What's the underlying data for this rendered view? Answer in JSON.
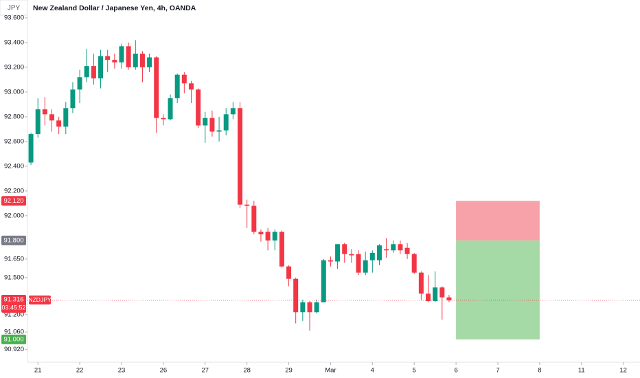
{
  "chart_data": {
    "type": "candlestick",
    "title": "New Zealand Dollar / Japanese Yen, 4h, OANDA",
    "currency": "JPY",
    "symbol": "NZDJPY",
    "countdown": "03:45:52",
    "up_color": "#089981",
    "down_color": "#f23645",
    "x": [
      0,
      1,
      2,
      3,
      4,
      5,
      6,
      7,
      8,
      9,
      10,
      11,
      12,
      13,
      14,
      15,
      16,
      17,
      18,
      19,
      20,
      21,
      22,
      23,
      24,
      25,
      26,
      27,
      28,
      29,
      30,
      31,
      32,
      33,
      34,
      35,
      36,
      37,
      38,
      39,
      40,
      41,
      42,
      43,
      44,
      45,
      46,
      47,
      48,
      49,
      50,
      51,
      52,
      53,
      54,
      55,
      56,
      57,
      58,
      59,
      60
    ],
    "open": [
      92.43,
      92.66,
      92.86,
      92.82,
      92.77,
      92.72,
      92.87,
      93.02,
      93.12,
      93.21,
      93.11,
      93.29,
      93.26,
      93.24,
      93.37,
      93.2,
      93.31,
      93.2,
      93.28,
      92.79,
      92.78,
      92.95,
      93.14,
      93.07,
      93.02,
      92.73,
      92.79,
      92.68,
      92.69,
      92.82,
      92.87,
      92.09,
      92.08,
      91.87,
      91.87,
      91.8,
      91.87,
      91.59,
      91.49,
      91.22,
      91.3,
      91.22,
      91.3,
      91.64,
      91.63,
      91.77,
      91.69,
      91.69,
      91.54,
      91.64,
      91.64,
      91.73,
      91.72,
      91.77,
      91.74,
      91.69,
      91.54,
      91.37,
      91.31,
      91.42,
      91.34
    ],
    "high": [
      92.67,
      92.95,
      92.96,
      92.86,
      92.8,
      92.92,
      93.08,
      93.18,
      93.35,
      93.31,
      93.34,
      93.34,
      93.31,
      93.39,
      93.4,
      93.42,
      93.33,
      93.31,
      93.29,
      92.82,
      92.98,
      93.15,
      93.16,
      93.09,
      93.03,
      92.84,
      92.85,
      92.8,
      92.87,
      92.92,
      92.92,
      92.13,
      92.12,
      91.89,
      91.9,
      91.89,
      91.88,
      91.6,
      91.5,
      91.32,
      91.31,
      91.32,
      91.65,
      91.67,
      91.77,
      91.78,
      91.73,
      91.72,
      91.71,
      91.72,
      91.77,
      91.82,
      91.8,
      91.8,
      91.78,
      91.7,
      91.55,
      91.52,
      91.55,
      91.43,
      91.36
    ],
    "low": [
      92.41,
      92.63,
      92.73,
      92.68,
      92.66,
      92.66,
      92.83,
      92.91,
      93.08,
      93.06,
      93.03,
      93.16,
      93.19,
      93.19,
      93.18,
      93.18,
      93.08,
      93.16,
      92.67,
      92.73,
      92.77,
      92.91,
      92.99,
      92.91,
      92.71,
      92.59,
      92.64,
      92.6,
      92.65,
      92.78,
      92.06,
      91.9,
      91.85,
      91.79,
      91.72,
      91.72,
      91.58,
      91.43,
      91.13,
      91.15,
      91.07,
      91.21,
      91.3,
      91.59,
      91.57,
      91.62,
      91.62,
      91.52,
      91.52,
      91.54,
      91.6,
      91.66,
      91.7,
      91.69,
      91.65,
      91.53,
      91.32,
      91.3,
      91.3,
      91.16,
      91.3
    ],
    "close": [
      92.66,
      92.86,
      92.82,
      92.77,
      92.72,
      92.87,
      93.02,
      93.12,
      93.21,
      93.11,
      93.29,
      93.26,
      93.24,
      93.37,
      93.2,
      93.31,
      93.2,
      93.28,
      92.79,
      92.78,
      92.95,
      93.14,
      93.07,
      93.02,
      92.73,
      92.79,
      92.68,
      92.69,
      92.82,
      92.87,
      92.09,
      92.08,
      91.87,
      91.85,
      91.8,
      91.87,
      91.59,
      91.49,
      91.22,
      91.3,
      91.22,
      91.3,
      91.64,
      91.63,
      91.77,
      91.69,
      91.68,
      91.54,
      91.64,
      91.7,
      91.76,
      91.72,
      91.77,
      91.72,
      91.69,
      91.54,
      91.37,
      91.31,
      91.42,
      91.34,
      91.316
    ],
    "last_price": 91.316,
    "xlim": [
      -0.5,
      87.4
    ],
    "xticks": [
      {
        "value": 1,
        "label": "21"
      },
      {
        "value": 7,
        "label": "22"
      },
      {
        "value": 13,
        "label": "23"
      },
      {
        "value": 19,
        "label": "26"
      },
      {
        "value": 25,
        "label": "27"
      },
      {
        "value": 31,
        "label": "28"
      },
      {
        "value": 37,
        "label": "29"
      },
      {
        "value": 43,
        "label": "Mar"
      },
      {
        "value": 49,
        "label": "4"
      },
      {
        "value": 55,
        "label": "5"
      },
      {
        "value": 61,
        "label": "6"
      },
      {
        "value": 67,
        "label": "7"
      },
      {
        "value": 73,
        "label": "8"
      },
      {
        "value": 79,
        "label": "11"
      },
      {
        "value": 85,
        "label": "12"
      }
    ],
    "ylim": [
      90.827,
      93.744
    ],
    "yticks": [
      {
        "value": 93.6,
        "label": "93.600"
      },
      {
        "value": 93.4,
        "label": "93.400"
      },
      {
        "value": 93.2,
        "label": "93.200"
      },
      {
        "value": 93.0,
        "label": "93.000"
      },
      {
        "value": 92.8,
        "label": "92.800"
      },
      {
        "value": 92.6,
        "label": "92.600"
      },
      {
        "value": 92.4,
        "label": "92.400"
      },
      {
        "value": 92.2,
        "label": "92.200"
      },
      {
        "value": 92.0,
        "label": "92.000"
      },
      {
        "value": 91.65,
        "label": "91.650"
      },
      {
        "value": 91.5,
        "label": "91.500"
      },
      {
        "value": 91.2,
        "label": "91.200"
      },
      {
        "value": 91.06,
        "label": "91.060"
      },
      {
        "value": 90.92,
        "label": "90.920"
      }
    ],
    "position": {
      "x_start": 61,
      "x_end": 73,
      "stop": {
        "value": 92.12,
        "label": "92.120"
      },
      "entry": {
        "value": 91.8,
        "label": "91.800"
      },
      "target": {
        "value": 91.0,
        "label": "91.000"
      },
      "stop_color": "#f7a1a8",
      "target_color": "#a5d9a5"
    }
  }
}
